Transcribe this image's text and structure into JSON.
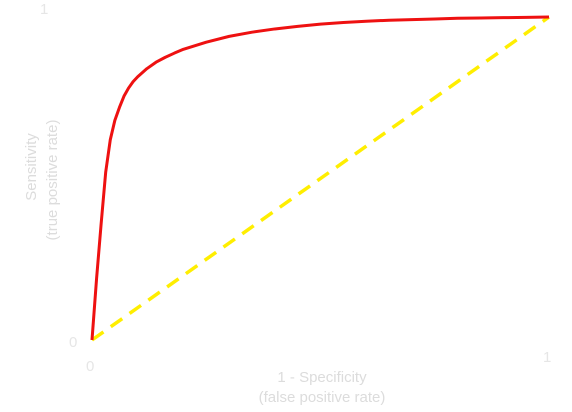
{
  "chart_data": {
    "type": "line",
    "title": "",
    "xlabel": [
      "1 - Specificity",
      "(false positive rate)"
    ],
    "ylabel": [
      "Sensitivity",
      "(true positive rate)"
    ],
    "xlim": [
      0,
      1
    ],
    "ylim": [
      0,
      1
    ],
    "x_ticks": [
      "0",
      "1"
    ],
    "y_ticks": [
      "0",
      "1"
    ],
    "grid": false,
    "series": [
      {
        "color": "#ee1111",
        "style": "solid",
        "x": [
          0,
          0.01,
          0.02,
          0.03,
          0.04,
          0.05,
          0.06,
          0.07,
          0.08,
          0.09,
          0.1,
          0.12,
          0.14,
          0.16,
          0.18,
          0.2,
          0.25,
          0.3,
          0.35,
          0.4,
          0.45,
          0.5,
          0.55,
          0.6,
          0.65,
          0.7,
          0.75,
          0.8,
          0.85,
          0.9,
          0.95,
          1.0
        ],
        "y": [
          0,
          0.19,
          0.36,
          0.52,
          0.62,
          0.68,
          0.72,
          0.755,
          0.78,
          0.8,
          0.815,
          0.84,
          0.86,
          0.875,
          0.888,
          0.9,
          0.922,
          0.94,
          0.953,
          0.963,
          0.971,
          0.978,
          0.983,
          0.987,
          0.99,
          0.992,
          0.994,
          0.996,
          0.997,
          0.998,
          0.999,
          1.0
        ]
      },
      {
        "color": "#ffee00",
        "style": "dashed",
        "x": [
          0,
          1
        ],
        "y": [
          0,
          1
        ]
      }
    ]
  }
}
